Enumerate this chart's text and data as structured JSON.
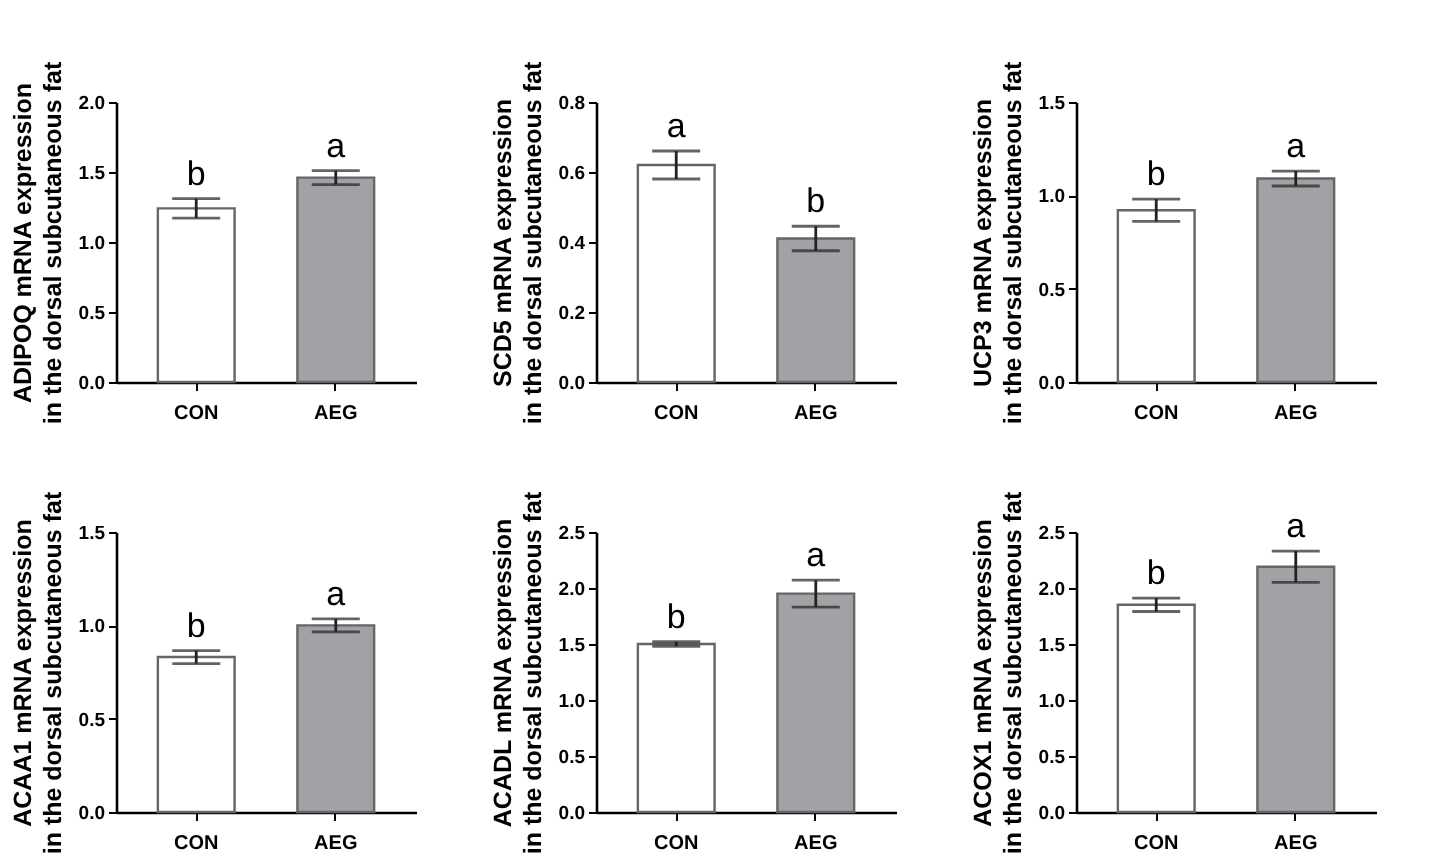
{
  "chart_data": [
    {
      "type": "bar",
      "ylabel": "ADIPOQ mRNA expression\nin the dorsal subcutaneous fat",
      "categories": [
        "CON",
        "AEG"
      ],
      "values": [
        1.24,
        1.46
      ],
      "errors": [
        0.07,
        0.05
      ],
      "colors": [
        "#ffffff",
        "#a2a1a6"
      ],
      "ylim": [
        0,
        2
      ],
      "yticks": [
        {
          "value": 0,
          "label": "0.0"
        },
        {
          "value": 0.5,
          "label": "0.5"
        },
        {
          "value": 1,
          "label": "1.0"
        },
        {
          "value": 1.5,
          "label": "1.5"
        },
        {
          "value": 2,
          "label": "2.0"
        }
      ],
      "grid": false,
      "annotations": [
        {
          "text": "b",
          "x": "CON",
          "y": 1.31
        },
        {
          "text": "a",
          "x": "AEG",
          "y": 1.51
        }
      ]
    },
    {
      "type": "bar",
      "ylabel": "SCD5 mRNA expression\nin the dorsal subcutaneous fat",
      "categories": [
        "CON",
        "AEG"
      ],
      "values": [
        0.62,
        0.41
      ],
      "errors": [
        0.04,
        0.035
      ],
      "colors": [
        "#ffffff",
        "#a2a1a6"
      ],
      "ylim": [
        0,
        0.8
      ],
      "yticks": [
        {
          "value": 0,
          "label": "0.0"
        },
        {
          "value": 0.2,
          "label": "0.2"
        },
        {
          "value": 0.4,
          "label": "0.4"
        },
        {
          "value": 0.6,
          "label": "0.6"
        },
        {
          "value": 0.8,
          "label": "0.8"
        }
      ],
      "grid": false,
      "annotations": [
        {
          "text": "a",
          "x": "CON",
          "y": 0.66
        },
        {
          "text": "b",
          "x": "AEG",
          "y": 0.445
        }
      ]
    },
    {
      "type": "bar",
      "ylabel": "UCP3 mRNA expression\nin the dorsal subcutaneous fat",
      "categories": [
        "CON",
        "AEG"
      ],
      "values": [
        0.92,
        1.09
      ],
      "errors": [
        0.06,
        0.04
      ],
      "colors": [
        "#ffffff",
        "#a2a1a6"
      ],
      "ylim": [
        0,
        1.5
      ],
      "yticks": [
        {
          "value": 0,
          "label": "0.0"
        },
        {
          "value": 0.5,
          "label": "0.5"
        },
        {
          "value": 1,
          "label": "1.0"
        },
        {
          "value": 1.5,
          "label": "1.5"
        }
      ],
      "grid": false,
      "annotations": [
        {
          "text": "b",
          "x": "CON",
          "y": 0.98
        },
        {
          "text": "a",
          "x": "AEG",
          "y": 1.13
        }
      ]
    },
    {
      "type": "bar",
      "ylabel": "ACAA1 mRNA expression\nin the dorsal subcutaneous fat",
      "categories": [
        "CON",
        "AEG"
      ],
      "values": [
        0.83,
        1.0
      ],
      "errors": [
        0.035,
        0.035
      ],
      "colors": [
        "#ffffff",
        "#a2a1a6"
      ],
      "ylim": [
        0,
        1.5
      ],
      "yticks": [
        {
          "value": 0,
          "label": "0.0"
        },
        {
          "value": 0.5,
          "label": "0.5"
        },
        {
          "value": 1,
          "label": "1.0"
        },
        {
          "value": 1.5,
          "label": "1.5"
        }
      ],
      "grid": false,
      "annotations": [
        {
          "text": "b",
          "x": "CON",
          "y": 0.865
        },
        {
          "text": "a",
          "x": "AEG",
          "y": 1.035
        }
      ]
    },
    {
      "type": "bar",
      "ylabel": "ACADL mRNA expression\nin the dorsal subcutaneous fat",
      "categories": [
        "CON",
        "AEG"
      ],
      "values": [
        1.5,
        1.95
      ],
      "errors": [
        0.02,
        0.12
      ],
      "colors": [
        "#ffffff",
        "#a2a1a6"
      ],
      "ylim": [
        0,
        2.5
      ],
      "yticks": [
        {
          "value": 0,
          "label": "0.0"
        },
        {
          "value": 0.5,
          "label": "0.5"
        },
        {
          "value": 1,
          "label": "1.0"
        },
        {
          "value": 1.5,
          "label": "1.5"
        },
        {
          "value": 2,
          "label": "2.0"
        },
        {
          "value": 2.5,
          "label": "2.5"
        }
      ],
      "grid": false,
      "annotations": [
        {
          "text": "b",
          "x": "CON",
          "y": 1.52
        },
        {
          "text": "a",
          "x": "AEG",
          "y": 2.07
        }
      ]
    },
    {
      "type": "bar",
      "ylabel": "ACOX1 mRNA expression\nin the dorsal subcutaneous fat",
      "categories": [
        "CON",
        "AEG"
      ],
      "values": [
        1.85,
        2.19
      ],
      "errors": [
        0.06,
        0.14
      ],
      "colors": [
        "#ffffff",
        "#a2a1a6"
      ],
      "ylim": [
        0,
        2.5
      ],
      "yticks": [
        {
          "value": 0,
          "label": "0.0"
        },
        {
          "value": 0.5,
          "label": "0.5"
        },
        {
          "value": 1,
          "label": "1.0"
        },
        {
          "value": 1.5,
          "label": "1.5"
        },
        {
          "value": 2,
          "label": "2.0"
        },
        {
          "value": 2.5,
          "label": "2.5"
        }
      ],
      "grid": false,
      "annotations": [
        {
          "text": "b",
          "x": "CON",
          "y": 1.91
        },
        {
          "text": "a",
          "x": "AEG",
          "y": 2.33
        }
      ]
    }
  ]
}
